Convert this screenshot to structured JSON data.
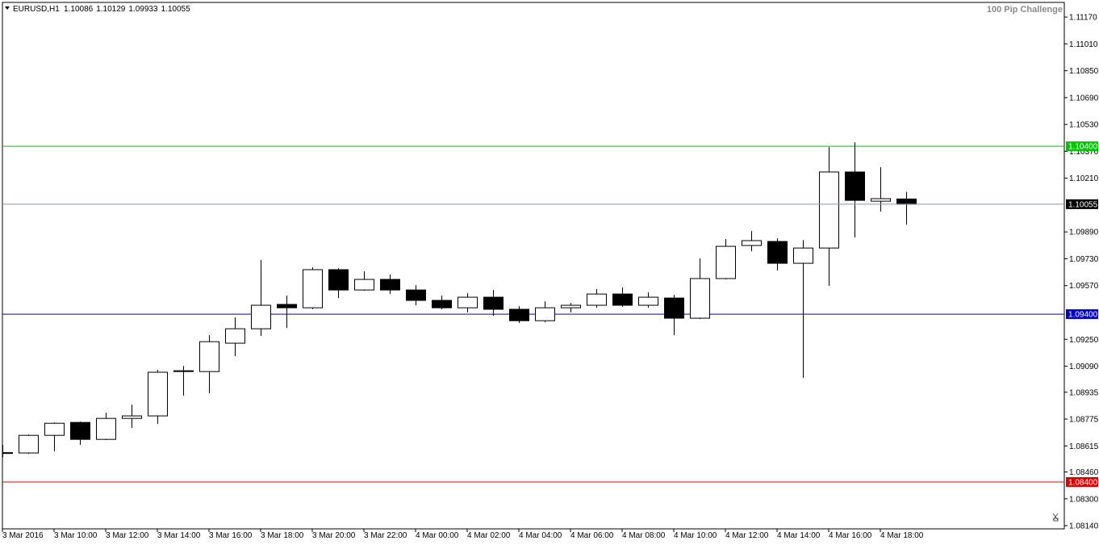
{
  "chart_data": {
    "type": "candlestick",
    "title": "EURUSD,H1",
    "annotation": "100 Pip Challenge",
    "categories": [
      "3 Mar 2016",
      null,
      "3 Mar 10:00",
      null,
      "3 Mar 12:00",
      null,
      "3 Mar 14:00",
      null,
      "3 Mar 16:00",
      null,
      "3 Mar 18:00",
      null,
      "3 Mar 20:00",
      null,
      "3 Mar 22:00",
      null,
      "4 Mar 00:00",
      null,
      "4 Mar 02:00",
      null,
      "4 Mar 04:00",
      null,
      "4 Mar 06:00",
      null,
      "4 Mar 08:00",
      null,
      "4 Mar 10:00",
      null,
      "4 Mar 12:00",
      null,
      "4 Mar 14:00",
      null,
      "4 Mar 16:00",
      null,
      "4 Mar 18:00",
      null
    ],
    "open": [
      1.08575,
      1.08573,
      1.08678,
      1.08755,
      1.08654,
      1.08779,
      1.08794,
      1.09058,
      1.09058,
      1.09227,
      1.09313,
      1.09458,
      1.09438,
      1.09665,
      1.09544,
      1.09607,
      1.09544,
      1.09482,
      1.09438,
      1.09501,
      1.09429,
      1.09361,
      1.09438,
      1.09453,
      1.0952,
      1.09453,
      1.09496,
      1.09376,
      1.09612,
      1.09809,
      1.09833,
      1.09703,
      1.09794,
      1.10247,
      1.10073,
      1.10086
    ],
    "high": [
      1.08621,
      1.08683,
      1.08755,
      1.0876,
      1.08813,
      1.08861,
      1.09068,
      1.09092,
      1.09275,
      1.09381,
      1.09722,
      1.09511,
      1.09679,
      1.09674,
      1.09655,
      1.09636,
      1.09573,
      1.09511,
      1.09525,
      1.09544,
      1.09448,
      1.09477,
      1.09467,
      1.09549,
      1.09559,
      1.0953,
      1.09515,
      1.09732,
      1.09847,
      1.09895,
      1.09852,
      1.09842,
      1.10396,
      1.10424,
      1.10275,
      1.10129
    ],
    "low": [
      1.08549,
      1.08568,
      1.08582,
      1.08621,
      1.0865,
      1.08722,
      1.08746,
      1.08914,
      1.08929,
      1.0915,
      1.0927,
      1.09318,
      1.09429,
      1.09496,
      1.09539,
      1.0952,
      1.09453,
      1.09429,
      1.0941,
      1.0939,
      1.09347,
      1.09352,
      1.0941,
      1.09438,
      1.09443,
      1.09438,
      1.09275,
      1.09371,
      1.09607,
      1.09775,
      1.0966,
      1.0902,
      1.09568,
      1.09857,
      1.10011,
      1.09933
    ],
    "close": [
      1.08573,
      1.08678,
      1.0875,
      1.08654,
      1.08779,
      1.08794,
      1.09054,
      1.09063,
      1.09236,
      1.09313,
      1.09453,
      1.09438,
      1.09665,
      1.09544,
      1.09607,
      1.09544,
      1.09482,
      1.09438,
      1.09501,
      1.09429,
      1.09361,
      1.09438,
      1.09453,
      1.0952,
      1.09453,
      1.09501,
      1.09376,
      1.09612,
      1.09804,
      1.09838,
      1.09703,
      1.09794,
      1.10247,
      1.10078,
      1.10088,
      1.10055
    ],
    "up_color": "#ffffff",
    "down_color": "#000000",
    "ylim": [
      1.08121,
      1.11257
    ],
    "yticks": [
      {
        "value": 1.1117,
        "label": "1.11170"
      },
      {
        "value": 1.1101,
        "label": "1.11010"
      },
      {
        "value": 1.1085,
        "label": "1.10850"
      },
      {
        "value": 1.1069,
        "label": "1.10690"
      },
      {
        "value": 1.1053,
        "label": "1.10530"
      },
      {
        "value": 1.1037,
        "label": "1.10370"
      },
      {
        "value": 1.1021,
        "label": "1.10210"
      },
      {
        "value": 1.0989,
        "label": "1.09890"
      },
      {
        "value": 1.0973,
        "label": "1.09730"
      },
      {
        "value": 1.0957,
        "label": "1.09570"
      },
      {
        "value": 1.0925,
        "label": "1.09250"
      },
      {
        "value": 1.0909,
        "label": "1.09090"
      },
      {
        "value": 1.08935,
        "label": "1.08935"
      },
      {
        "value": 1.08775,
        "label": "1.08775"
      },
      {
        "value": 1.08615,
        "label": "1.08615"
      },
      {
        "value": 1.0846,
        "label": "1.08460"
      },
      {
        "value": 1.083,
        "label": "1.08300"
      },
      {
        "value": 1.0814,
        "label": "1.08140"
      }
    ],
    "levels": [
      {
        "value": 1.104,
        "label": "1.10400",
        "color": "#00c800"
      },
      {
        "value": 1.094,
        "label": "1.09400",
        "color": "#0000c8"
      },
      {
        "value": 1.084,
        "label": "1.08400",
        "color": "#e00000"
      }
    ],
    "price_line_color": "#8c9aa8"
  }
}
